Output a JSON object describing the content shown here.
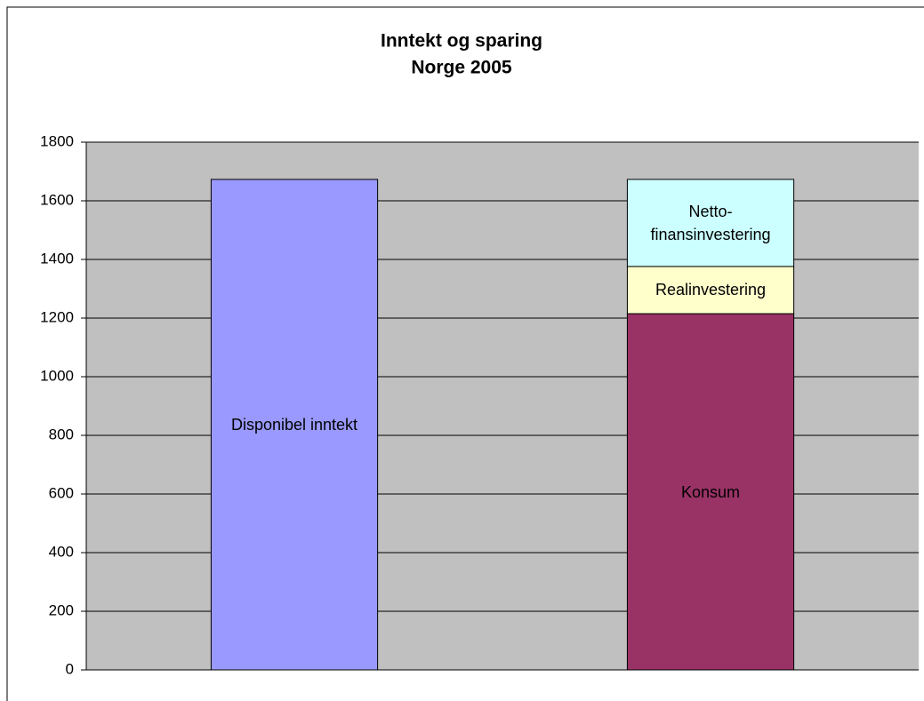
{
  "chart_data": {
    "type": "stacked_bar",
    "title": "Inntekt og sparing",
    "subtitle": "Norge 2005",
    "categories": [
      null,
      null
    ],
    "series": [
      {
        "name": "Disponibel inntekt",
        "color": "#9999ff",
        "values": [
          1673,
          null
        ]
      },
      {
        "name": "Konsum",
        "color": "#993366",
        "values": [
          null,
          1215
        ]
      },
      {
        "name": "Realinvestering",
        "color": "#ffffcc",
        "values": [
          null,
          161
        ]
      },
      {
        "name": "Netto-finansinvestering",
        "color": "#ccffff",
        "values": [
          null,
          297
        ]
      }
    ],
    "ylim": [
      0,
      1800
    ],
    "yticks": [
      0,
      200,
      400,
      600,
      800,
      1000,
      1200,
      1400,
      1600,
      1800
    ],
    "grid": true,
    "plot_background": "#c0c0c0"
  }
}
